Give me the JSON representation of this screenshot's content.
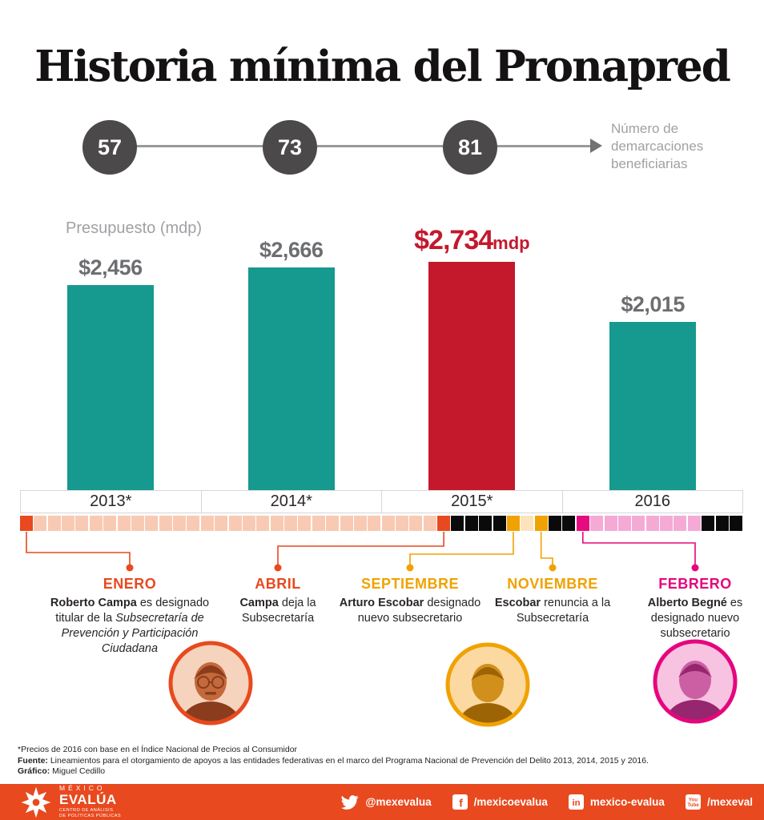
{
  "title": "Historia mínima del Pronapred",
  "demarcaciones": {
    "label": "Número de demarcaciones beneficiarias",
    "values": [
      "57",
      "73",
      "81"
    ]
  },
  "chart_data": {
    "type": "bar",
    "title": "Presupuesto (mdp)",
    "categories": [
      "2013*",
      "2014*",
      "2015*",
      "2016"
    ],
    "values": [
      2456,
      2666,
      2734,
      2015
    ],
    "value_labels": [
      "$2,456",
      "$2,666",
      "$2,734",
      "$2,015"
    ],
    "highlight_index": 2,
    "highlight_suffix": "mdp",
    "bar_color": "#16998e",
    "highlight_color": "#c4182d",
    "ylim": [
      0,
      2900
    ],
    "grid": false,
    "secondary_series": {
      "name": "Número de demarcaciones beneficiarias",
      "x": [
        "2013",
        "2014",
        "2015"
      ],
      "values": [
        57,
        73,
        81
      ]
    }
  },
  "timeline": {
    "palette": {
      "orange": "#e8491f",
      "peach": "#f8cab3",
      "black": "#0a0a0a",
      "amber": "#f0a202",
      "cream": "#fce3bb",
      "magenta": "#e60c7f",
      "pink": "#f5aad6"
    },
    "squares_rle": [
      [
        "orange",
        1
      ],
      [
        "peach",
        29
      ],
      [
        "orange",
        1
      ],
      [
        "black",
        4
      ],
      [
        "amber",
        1
      ],
      [
        "cream",
        1
      ],
      [
        "amber",
        1
      ],
      [
        "black",
        2
      ],
      [
        "magenta",
        1
      ],
      [
        "pink",
        8
      ],
      [
        "black",
        3
      ]
    ]
  },
  "events": [
    {
      "month": "ENERO",
      "color": "#e8491f",
      "square_index": 0,
      "html": "<b>Roberto Campa</b> es designado titular de la <i>Subsecretaría de Prevención y Participación Ciudadana</i>"
    },
    {
      "month": "ABRIL",
      "color": "#e8491f",
      "square_index": 30,
      "html": "<b>Campa</b> deja la Subsecretaría"
    },
    {
      "month": "SEPTIEMBRE",
      "color": "#f0a202",
      "square_index": 35,
      "html": "<b>Arturo Escobar</b> designado nuevo subsecretario"
    },
    {
      "month": "NOVIEMBRE",
      "color": "#f0a202",
      "square_index": 37,
      "html": "<b>Escobar</b> renuncia a la Subsecretaría"
    },
    {
      "month": "FEBRERO",
      "color": "#e5067e",
      "square_index": 40,
      "html": "<b>Alberto Begné</b> es designado nuevo subsecretario"
    }
  ],
  "photos": [
    {
      "name": "Roberto Campa"
    },
    {
      "name": "Arturo Escobar"
    },
    {
      "name": "Alberto Begné"
    }
  ],
  "footnotes": [
    "*Precios de 2016 con base en el Índice Nacional de Precios al Consumidor",
    "<b>Fuente:</b> Lineamientos para el otorgamiento de apoyos a las entidades federativas en el marco del Programa Nacional de Prevención del Delito 2013, 2014, 2015 y 2016.",
    "<b>Gráfico:</b> Miguel Cedillo"
  ],
  "footer": {
    "bar_color": "#e8491f",
    "logo": {
      "top": "MÉXICO",
      "main": "EVALÚA",
      "sub1": "CENTRO DE ANÁLISIS",
      "sub2": "DE POLÍTICAS PÚBLICAS"
    },
    "socials": [
      {
        "network": "twitter",
        "handle": "@mexevalua"
      },
      {
        "network": "facebook",
        "handle": "/mexicoevalua"
      },
      {
        "network": "linkedin",
        "handle": "mexico-evalua"
      },
      {
        "network": "youtube",
        "handle": "/mexeval"
      }
    ]
  },
  "colors": {
    "teal": "#16998e",
    "red": "#c4182d",
    "value_gray": "#6d6e71",
    "muted_gray": "#9fa1a4",
    "circle_gray": "#4c494a",
    "accent_orange": "#e8491f",
    "amber": "#f0a202",
    "magenta": "#e5067e"
  }
}
